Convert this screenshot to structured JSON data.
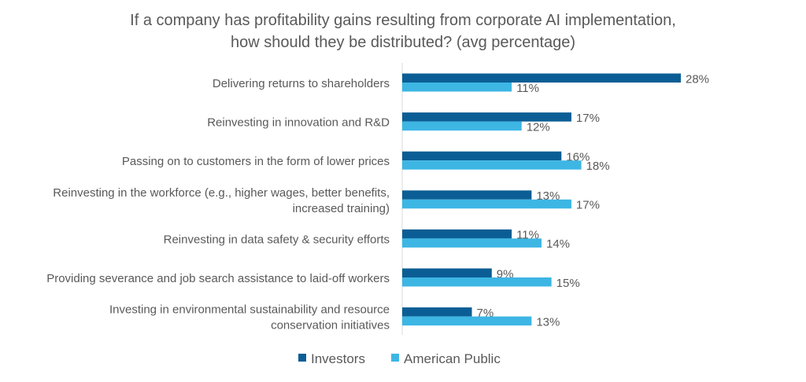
{
  "chart_data": {
    "type": "bar",
    "orientation": "horizontal",
    "title": [
      "If a company has profitability gains resulting from corporate AI implementation,",
      "how should they be distributed? (avg percentage)"
    ],
    "categories": [
      [
        "Delivering returns to shareholders"
      ],
      [
        "Reinvesting in innovation and R&D"
      ],
      [
        "Passing on to customers in the form of lower prices"
      ],
      [
        "Reinvesting in the workforce (e.g., higher wages, better benefits,",
        "increased training)"
      ],
      [
        "Reinvesting in data safety & security efforts"
      ],
      [
        "Providing severance and job search assistance to laid-off workers"
      ],
      [
        "Investing in environmental sustainability and resource",
        "conservation initiatives"
      ]
    ],
    "series": [
      {
        "name": "Investors",
        "color": "#0B5E95",
        "values": [
          28,
          17,
          16,
          13,
          11,
          9,
          7
        ]
      },
      {
        "name": "American Public",
        "color": "#3DB6E4",
        "values": [
          11,
          12,
          18,
          17,
          14,
          15,
          13
        ]
      }
    ],
    "value_suffix": "%",
    "xlabel": "",
    "ylabel": "",
    "xlim": [
      0,
      30
    ],
    "grid": false,
    "legend": "bottom"
  }
}
